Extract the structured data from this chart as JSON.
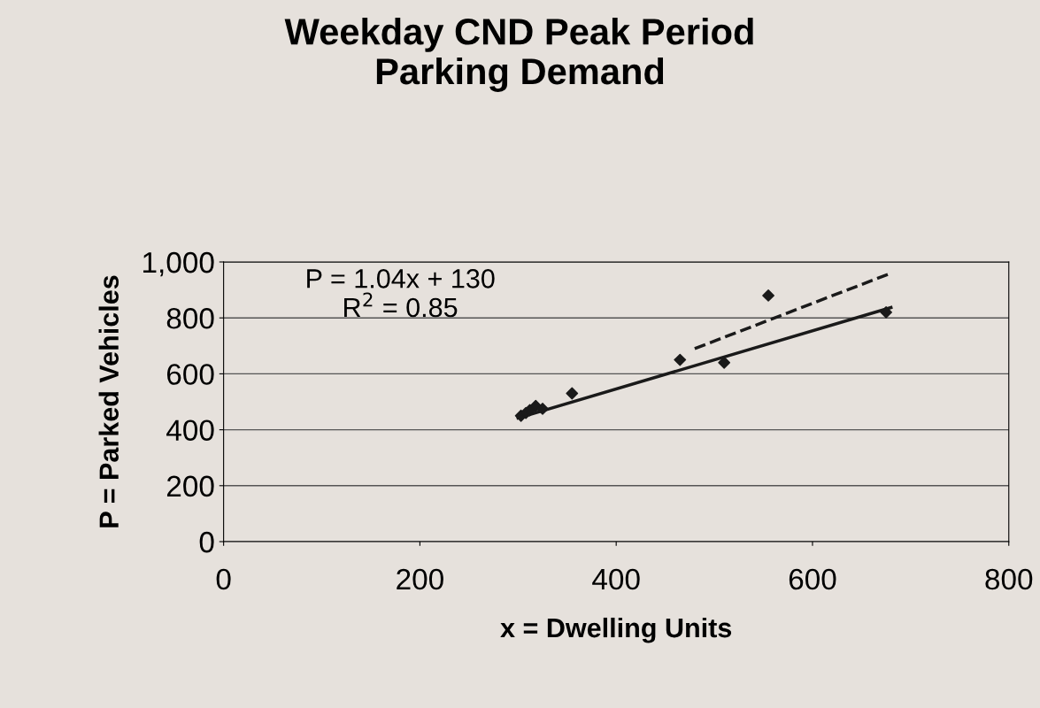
{
  "chart_data": {
    "type": "scatter",
    "title": "Weekday CND Peak Period\nParking Demand",
    "xlabel": "x = Dwelling Units",
    "ylabel": "P = Parked Vehicles",
    "series": [
      {
        "color": "#1a1a1a",
        "marker": "diamond",
        "x": [
          303,
          308,
          312,
          318,
          325,
          355,
          465,
          510,
          555,
          675
        ],
        "values": [
          450,
          460,
          470,
          485,
          475,
          530,
          650,
          640,
          880,
          820
        ]
      },
      {
        "type": "line",
        "color": "#1a1a1a",
        "line_style": "solid",
        "x": [
          300,
          680
        ],
        "values": [
          442,
          837
        ]
      },
      {
        "type": "line",
        "color": "#1a1a1a",
        "line_style": "dashed",
        "x": [
          480,
          680
        ],
        "values": [
          690,
          960
        ]
      }
    ],
    "annotations": [
      "P = 1.04x + 130\nR$^{2}$ = 0.85"
    ],
    "xlim": [
      0,
      800
    ],
    "ylim": [
      0,
      1000
    ],
    "xticks": [
      0,
      200,
      400,
      600,
      800
    ],
    "yticks": [
      0,
      200,
      400,
      600,
      800,
      {
        "value": 1000,
        "label": "1,000"
      }
    ],
    "grid": "y"
  }
}
